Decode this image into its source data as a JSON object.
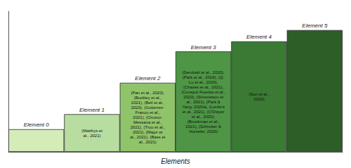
{
  "chart_data": {
    "type": "bar",
    "xlabel": "Elements",
    "categories": [
      "Element 0",
      "Element 1",
      "Element 2",
      "Element 3",
      "Element 4",
      "Element 5"
    ],
    "values": [
      0.18,
      0.3,
      0.55,
      0.8,
      0.88,
      0.97
    ],
    "colors": [
      "#d4ecb8",
      "#b8dda0",
      "#90c46a",
      "#4e9645",
      "#3a7a35",
      "#2d5e28"
    ],
    "ylim": [
      0,
      1.12
    ],
    "grid": false,
    "tick_labels": false,
    "annotations": [
      {
        "category": "Element 1",
        "text": "(Matthys et\nal., 2021)"
      },
      {
        "category": "Element 2",
        "text": "(Pan et al., 2020),\n(Buckley et al.,\n2021), (Beil et al.,\n2020), (Gutierrez-\nFranco et al.,\n2021), (Orozco-\nMessana et al.,\n2021), (Truu et al.,\n2021), (Major et\nal., 2021), (Bass et\nal., 2021)"
      },
      {
        "category": "Element 3",
        "text": "(Dembski et al., 2020),\n(Park et al., 2019), (Q.\nLu et al., 2020),\n(Chaves et al., 2021),\n(Conejos Fuertes et al.,\n2020), (Simonsson et\nal., 2021), (Park &\nYang, 2020a), (Lenfers\net al., 2021), (O'Dwyer\net al., 2020),\n(Broekman et al.,\n2021), (Schrotter &\nHurzeler, 2020)"
      },
      {
        "category": "Element 4",
        "text": "(Sun et al.,\n2020)"
      }
    ]
  }
}
